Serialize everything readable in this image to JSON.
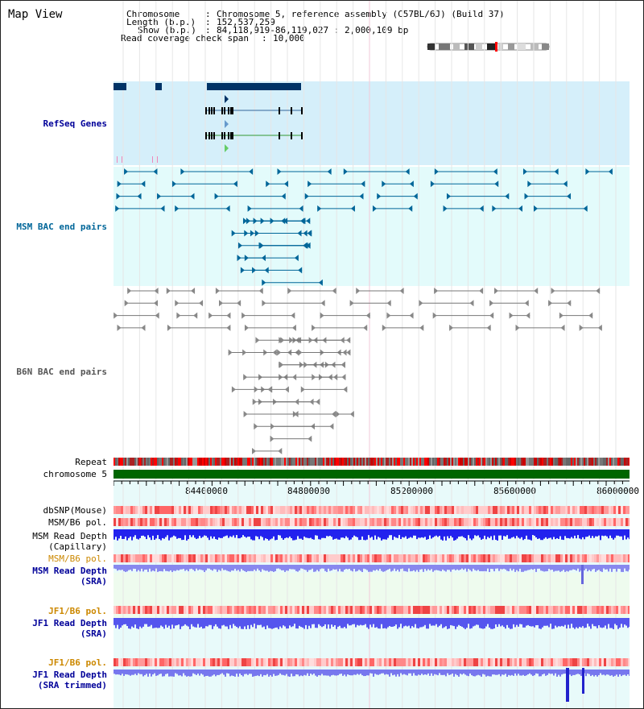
{
  "title": "Map View",
  "header": {
    "chromosome_key": "Chromosome",
    "chromosome_val": "Chromosome 5, reference assembly (C57BL/6J) (Build 37)",
    "length_key": "Length (b.p.)",
    "length_val": "152,537,259",
    "show_key": "Show (b.p.)",
    "show_val": "84,118,919-86,119,027 : 2,000,109 bp",
    "span_key": "Read coverage check span",
    "span_val": "10,000"
  },
  "tracks": {
    "refseq": "RefSeq Genes",
    "msm_bac": "MSM BAC end pairs",
    "b6n_bac": "B6N BAC end pairs",
    "repeat": "Repeat",
    "chromosome": "chromosome 5",
    "dbsnp": "dbSNP(Mouse)",
    "msm_b6_pol_1": "MSM/B6 pol.",
    "msm_depth_cap_1": "MSM Read Depth",
    "msm_depth_cap_2": "(Capillary)",
    "msm_b6_pol_2": "MSM/B6 pol.",
    "msm_depth_sra_1": "MSM Read Depth",
    "msm_depth_sra_2": "(SRA)",
    "jf1_pol_1": "JF1/B6 pol.",
    "jf1_depth_sra_1": "JF1 Read Depth",
    "jf1_depth_sra_2": "(SRA)",
    "jf1_pol_2": "JF1/B6 pol.",
    "jf1_depth_trim_1": "JF1 Read Depth",
    "jf1_depth_trim_2": "(SRA trimmed)"
  },
  "axis_ticks": [
    "84400000",
    "84800000",
    "85200000",
    "85600000",
    "86000000"
  ],
  "colors": {
    "refseq_label": "#000099",
    "msm_bac_label": "#006699",
    "b6n_bac_label": "#555555",
    "orange_label": "#cc8800",
    "blue_label": "#000099"
  }
}
